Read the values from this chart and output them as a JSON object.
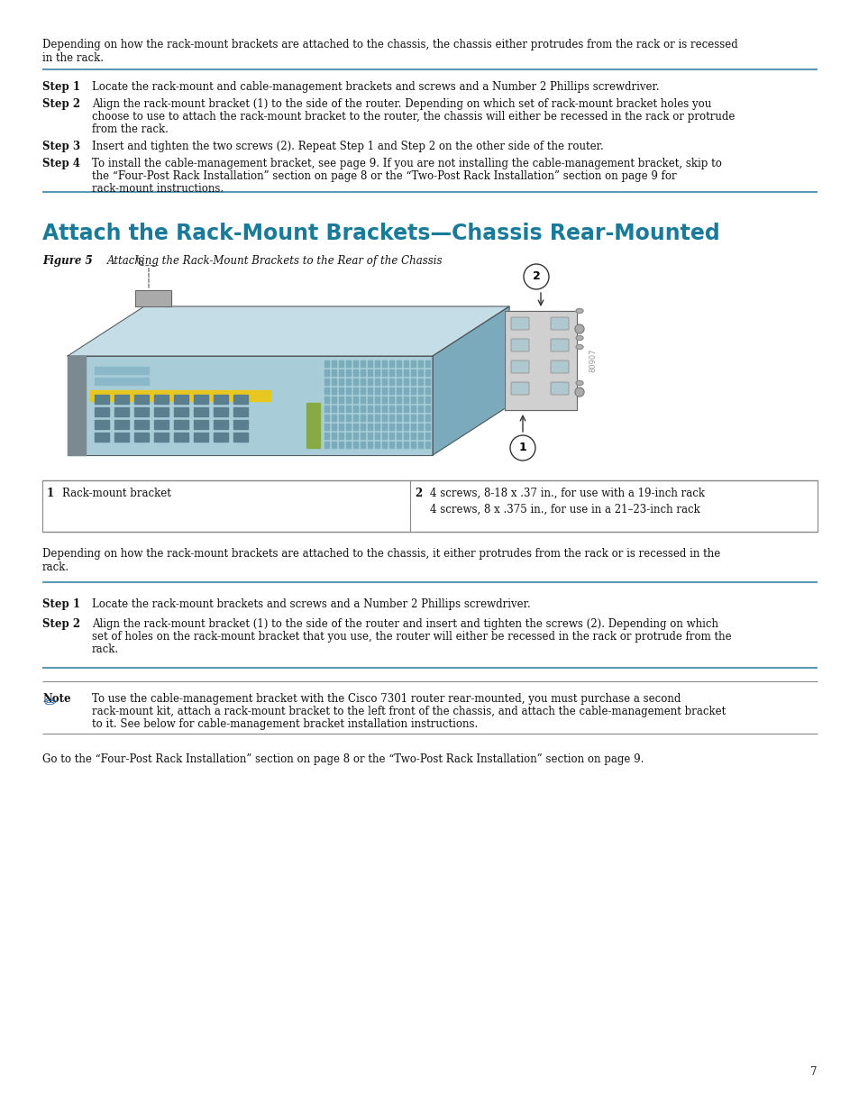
{
  "bg_color": "#ffffff",
  "text_color": "#111111",
  "heading_color": "#1a7a9a",
  "rule_color": "#5a9ab5",
  "lmargin": 47,
  "rmargin": 907,
  "top_text_line1": "Depending on how the rack-mount brackets are attached to the chassis, the chassis either protrudes from the rack or is recessed",
  "top_text_line2": "in the rack.",
  "step1_label": "Step 1",
  "step1_text": "Locate the rack-mount and cable-management brackets and screws and a Number 2 Phillips screwdriver.",
  "step2_label": "Step 2",
  "step2_text_line1": "Align the rack-mount bracket (1) to the side of the router. Depending on which set of rack-mount bracket holes you",
  "step2_text_line2": "choose to use to attach the rack-mount bracket to the router, the chassis will either be recessed in the rack or protrude",
  "step2_text_line3": "from the rack.",
  "step3_label": "Step 3",
  "step3_text": "Insert and tighten the two screws (2). Repeat Step 1 and Step 2 on the other side of the router.",
  "step4_label": "Step 4",
  "step4_text_line1": "To install the cable-management bracket, see page 9. If you are not installing the cable-management bracket, skip to",
  "step4_text_line2": "the “Four-Post Rack Installation” section on page 8 or the “Two-Post Rack Installation” section on page 9 for",
  "step4_text_line3": "rack-mount instructions.",
  "section_heading": "Attach the Rack-Mount Brackets—Chassis Rear-Mounted",
  "figure_label": "Figure 5",
  "figure_caption": "Attaching the Rack-Mount Brackets to the Rear of the Chassis",
  "table_col1_num": "1",
  "table_col1_text": "Rack-mount bracket",
  "table_col2_num": "2",
  "table_col2_line1": "4 screws, 8-18 x .37 in., for use with a 19-inch rack",
  "table_col2_line2": "4 screws, 8 x .375 in., for use in a 21–23-inch rack",
  "bottom_para_line1": "Depending on how the rack-mount brackets are attached to the chassis, it either protrudes from the rack or is recessed in the",
  "bottom_para_line2": "rack.",
  "s2_step1_label": "Step 1",
  "s2_step1_text": "Locate the rack-mount brackets and screws and a Number 2 Phillips screwdriver.",
  "s2_step2_label": "Step 2",
  "s2_step2_text_line1": "Align the rack-mount bracket (1) to the side of the router and insert and tighten the screws (2). Depending on which",
  "s2_step2_text_line2": "set of holes on the rack-mount bracket that you use, the router will either be recessed in the rack or protrude from the",
  "s2_step2_text_line3": "rack.",
  "note_label": "Note",
  "note_line1": "To use the cable-management bracket with the Cisco 7301 router rear-mounted, you must purchase a second",
  "note_line2": "rack-mount kit, attach a rack-mount bracket to the left front of the chassis, and attach the cable-management bracket",
  "note_line3": "to it. See below for cable-management bracket installation instructions.",
  "footer_text": "Go to the “Four-Post Rack Installation” section on page 8 or the “Two-Post Rack Installation” section on page 9.",
  "page_number": "7",
  "chassis_body_color": "#a8cdd8",
  "chassis_top_color": "#c4dde6",
  "chassis_side_color": "#7aaabb",
  "chassis_front_dark": "#6699aa",
  "bracket_color": "#d0d0d0",
  "yellow_strip": "#e8c820"
}
